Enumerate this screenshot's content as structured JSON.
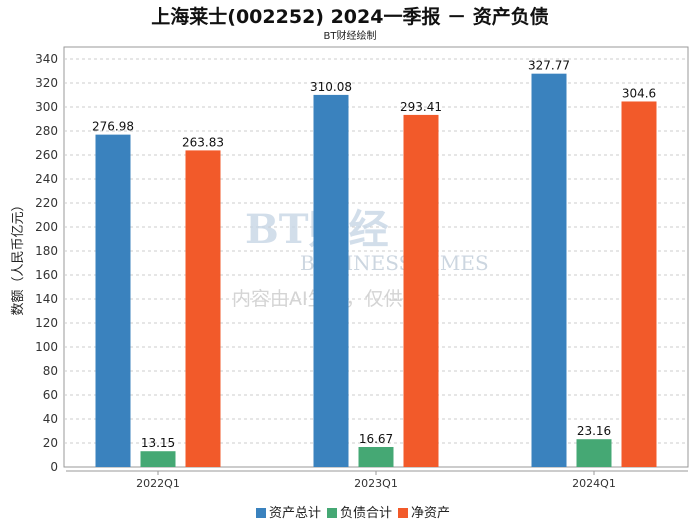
{
  "chart_data": {
    "type": "bar",
    "title": "上海莱士(002252) 2024一季报 － 资产负债",
    "subtitle": "BT财经绘制",
    "ylabel": "数额（人民币亿元）",
    "xlabel": "",
    "categories": [
      "2022Q1",
      "2023Q1",
      "2024Q1"
    ],
    "series": [
      {
        "name": "资产总计",
        "color": "#3a82be",
        "values": [
          276.98,
          310.08,
          327.77
        ]
      },
      {
        "name": "负债合计",
        "color": "#45a874",
        "values": [
          13.15,
          16.67,
          23.16
        ]
      },
      {
        "name": "净资产",
        "color": "#f25a2a",
        "values": [
          263.83,
          293.41,
          304.6
        ]
      }
    ],
    "ylim": [
      0,
      340
    ],
    "ytick_step": 20,
    "grid": true,
    "legend": "bottom"
  },
  "watermark": {
    "line1": "BT财经",
    "line2": "BUSINESS TIMES",
    "line3": "内容由AI生成，仅供参考"
  }
}
